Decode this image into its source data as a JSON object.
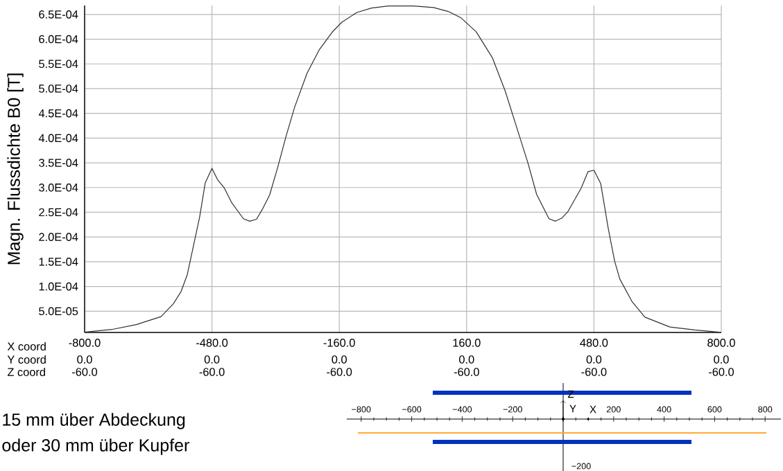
{
  "chart_data": [
    {
      "type": "line",
      "ylabel": "Magn. Flussdichte B0 [T]",
      "color": "#303030",
      "x": [
        -797,
        -732,
        -670,
        -608,
        -577,
        -558,
        -542,
        -527,
        -511,
        -497,
        -480,
        -466,
        -449,
        -430,
        -401,
        -385,
        -368,
        -354,
        -335,
        -315,
        -293,
        -272,
        -241,
        -210,
        -178,
        -154,
        -116,
        -79,
        -37,
        26,
        77,
        114,
        146,
        184,
        225,
        257,
        292,
        314,
        336,
        367,
        383,
        399,
        415,
        448,
        465,
        480,
        497,
        516,
        532,
        545,
        576,
        608,
        671,
        734,
        791,
        800
      ],
      "values": [
        8e-06,
        1.3e-05,
        2.3e-05,
        3.9e-05,
        6.5e-05,
        8.9e-05,
        0.000124,
        0.00018,
        0.00024,
        0.000309,
        0.000339,
        0.000316,
        0.000299,
        0.000269,
        0.000237,
        0.000232,
        0.000236,
        0.000255,
        0.000285,
        0.00034,
        0.000406,
        0.000463,
        0.000531,
        0.000579,
        0.000614,
        0.000634,
        0.000654,
        0.000663,
        0.000667,
        0.000667,
        0.000664,
        0.000656,
        0.000643,
        0.000615,
        0.000562,
        0.000495,
        0.000406,
        0.00035,
        0.000286,
        0.000237,
        0.000232,
        0.000238,
        0.000252,
        0.000299,
        0.000332,
        0.000335,
        0.000308,
        0.000217,
        0.000151,
        0.000115,
        6.9e-05,
        3.8e-05,
        1.8e-05,
        1.2e-05,
        8e-06,
        7e-06
      ],
      "xlim": [
        -800,
        800
      ],
      "ylim": [
        7e-06,
        0.000668
      ],
      "xticks": [
        {
          "value": -800,
          "label": "-800.0"
        },
        {
          "value": -480,
          "label": "-480.0"
        },
        {
          "value": -160,
          "label": "-160.0"
        },
        {
          "value": 160,
          "label": "160.0"
        },
        {
          "value": 480,
          "label": "480.0"
        },
        {
          "value": 800,
          "label": "800.0"
        }
      ],
      "yticks": [
        {
          "value": 5e-05,
          "label": "5.0E-05"
        },
        {
          "value": 0.0001,
          "label": "1.0E-04"
        },
        {
          "value": 0.00015,
          "label": "1.5E-04"
        },
        {
          "value": 0.0002,
          "label": "2.0E-04"
        },
        {
          "value": 0.00025,
          "label": "2.5E-04"
        },
        {
          "value": 0.0003,
          "label": "3.0E-04"
        },
        {
          "value": 0.00035,
          "label": "3.5E-04"
        },
        {
          "value": 0.0004,
          "label": "4.0E-04"
        },
        {
          "value": 0.00045,
          "label": "4.5E-04"
        },
        {
          "value": 0.0005,
          "label": "5.0E-04"
        },
        {
          "value": 0.00055,
          "label": "5.5E-04"
        },
        {
          "value": 0.0006,
          "label": "6.0E-04"
        },
        {
          "value": 0.00065,
          "label": "6.5E-04"
        }
      ],
      "grid": true,
      "annotations": [
        "X coord",
        "Y coord",
        "Z coord",
        "0.0",
        "0.0",
        "0.0",
        "0.0",
        "0.0",
        "0.0",
        "-60.0",
        "-60.0",
        "-60.0",
        "-60.0",
        "-60.0",
        "-60.0",
        "15 mm über Abdeckung",
        "oder 30 mm über Kupfer"
      ]
    },
    {
      "type": "other",
      "annotations": [
        "−800",
        "−600",
        "−400",
        "−200",
        "200",
        "400",
        "600",
        "800",
        "−200",
        "Z",
        "Y",
        "X"
      ]
    }
  ]
}
